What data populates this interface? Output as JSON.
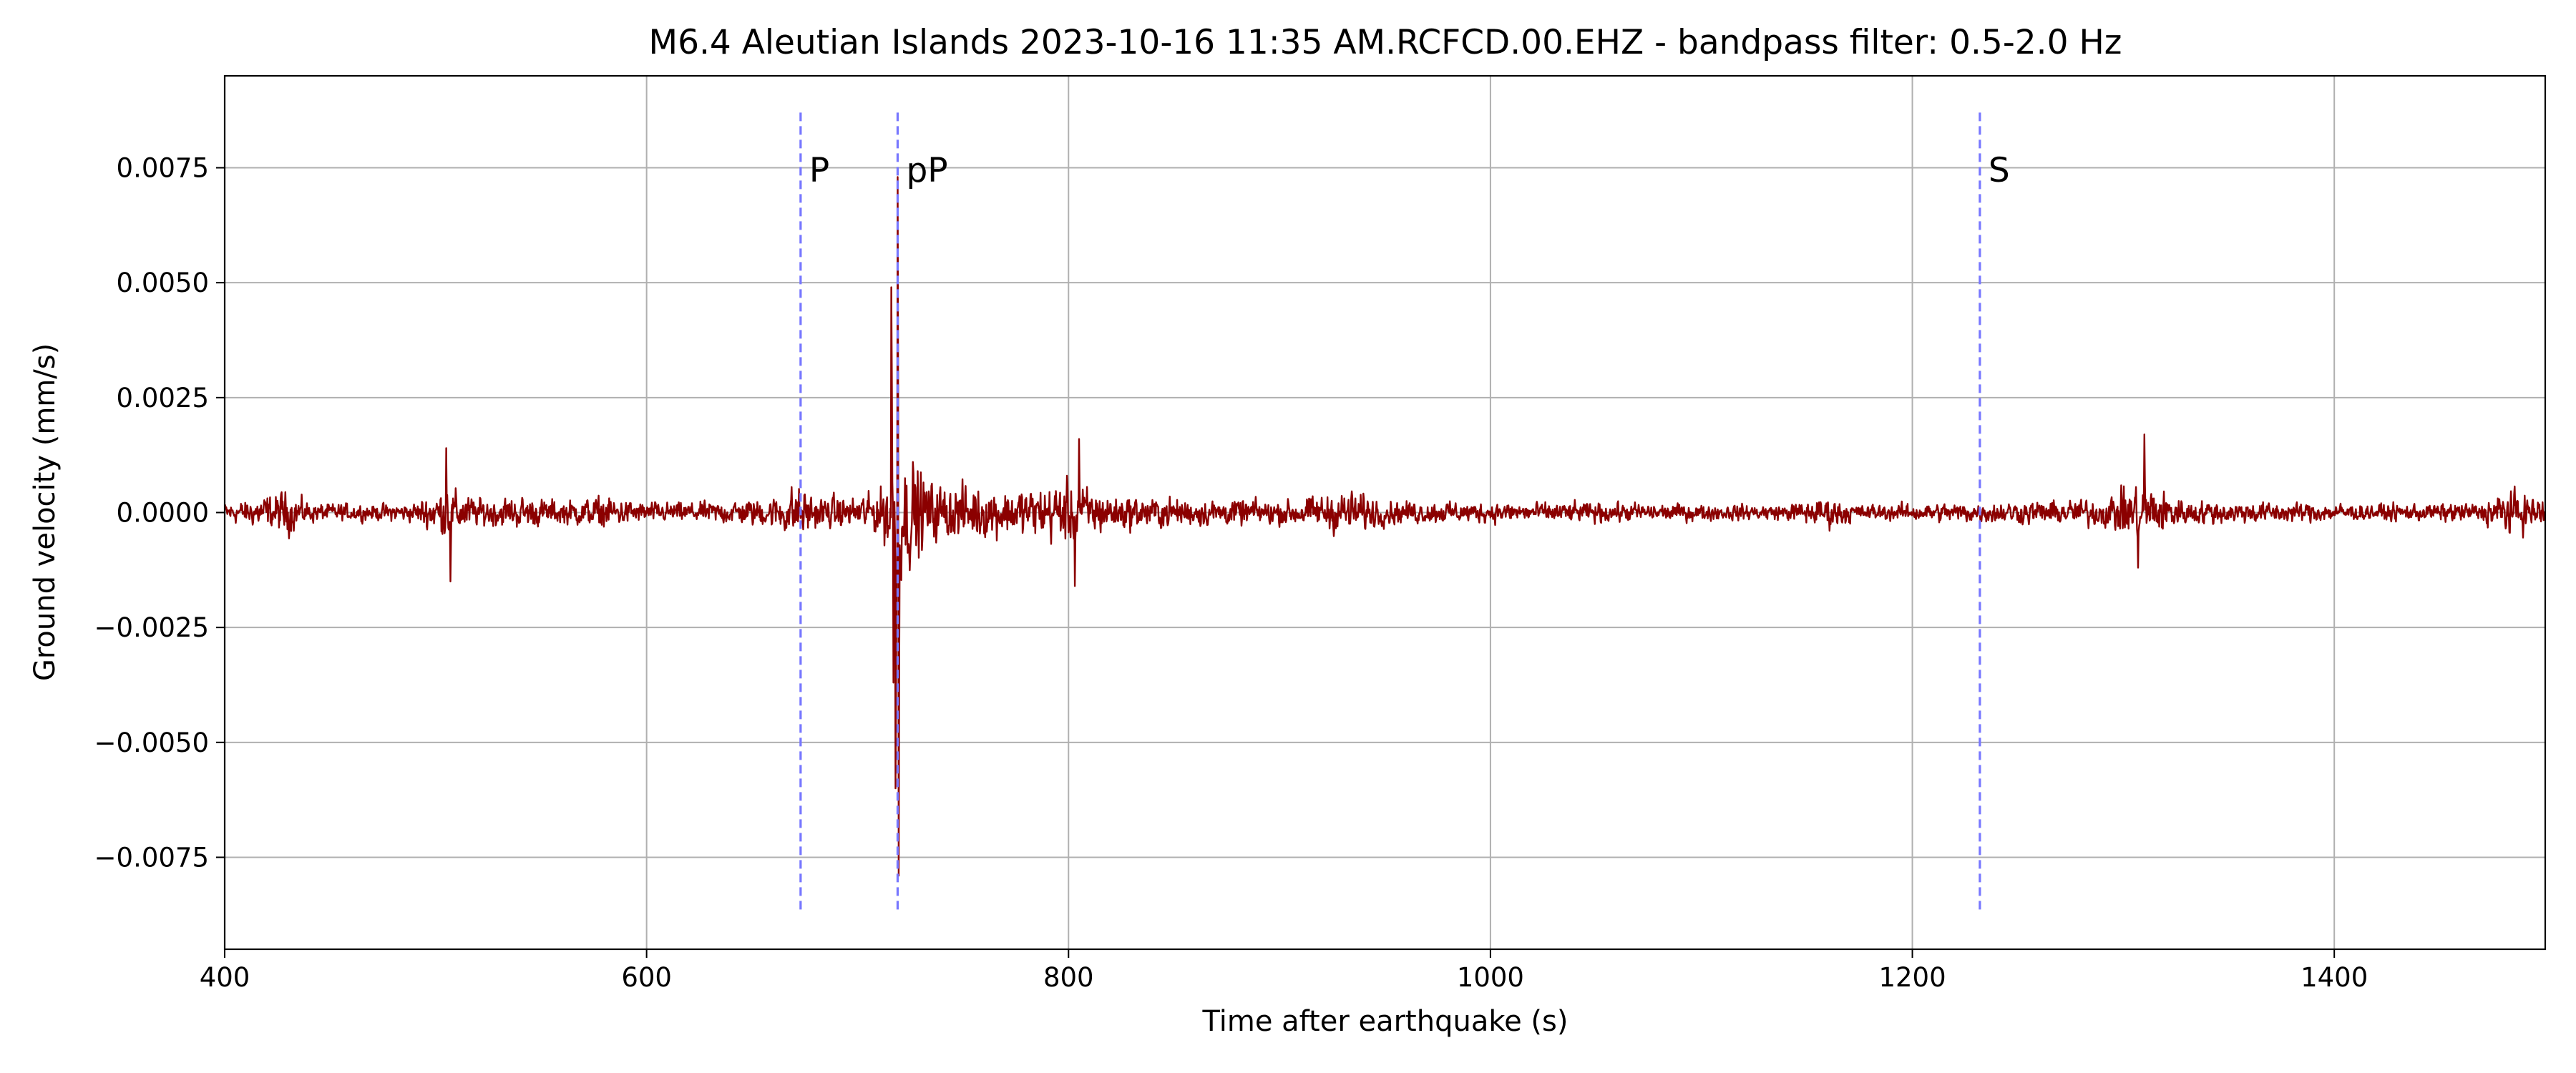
{
  "chart_data": {
    "type": "line",
    "title": "M6.4 Aleutian Islands 2023-10-16 11:35 AM.RCFCD.00.EHZ - bandpass filter: 0.5-2.0 Hz",
    "xlabel": "Time after earthquake (s)",
    "ylabel": "Ground velocity (mm/s)",
    "xlim": [
      400,
      1500
    ],
    "ylim": [
      -0.0095,
      0.0095
    ],
    "xticks": [
      400,
      600,
      800,
      1000,
      1200,
      1400
    ],
    "xtick_labels": [
      "400",
      "600",
      "800",
      "1000",
      "1200",
      "1400"
    ],
    "yticks": [
      -0.0075,
      -0.005,
      -0.0025,
      0.0,
      0.0025,
      0.005,
      0.0075
    ],
    "ytick_labels": [
      "−0.0075",
      "−0.0050",
      "−0.0025",
      "0.0000",
      "0.0025",
      "0.0050",
      "0.0075"
    ],
    "grid": true,
    "series": [
      {
        "color": "#8b0000",
        "sample_interval": 0.25,
        "x_start": 400,
        "x_end": 1500,
        "envelope": [
          [
            400,
            0.0005
          ],
          [
            410,
            0.0006
          ],
          [
            430,
            0.0011
          ],
          [
            440,
            0.0005
          ],
          [
            470,
            0.0004
          ],
          [
            490,
            0.0005
          ],
          [
            505,
            0.0013
          ],
          [
            520,
            0.0007
          ],
          [
            540,
            0.0008
          ],
          [
            560,
            0.0006
          ],
          [
            580,
            0.0008
          ],
          [
            600,
            0.0005
          ],
          [
            620,
            0.0005
          ],
          [
            640,
            0.0006
          ],
          [
            660,
            0.0008
          ],
          [
            672,
            0.0014
          ],
          [
            680,
            0.0008
          ],
          [
            700,
            0.0008
          ],
          [
            710,
            0.0012
          ],
          [
            714,
            0.002
          ],
          [
            716,
            0.0048
          ],
          [
            717,
            0.004
          ],
          [
            718,
            0.005
          ],
          [
            719,
            0.0073
          ],
          [
            720,
            0.003
          ],
          [
            725,
            0.0028
          ],
          [
            735,
            0.0015
          ],
          [
            760,
            0.0013
          ],
          [
            780,
            0.0012
          ],
          [
            800,
            0.0016
          ],
          [
            820,
            0.0009
          ],
          [
            860,
            0.0007
          ],
          [
            900,
            0.0006
          ],
          [
            935,
            0.0011
          ],
          [
            950,
            0.0006
          ],
          [
            1000,
            0.0005
          ],
          [
            1050,
            0.0005
          ],
          [
            1100,
            0.0004
          ],
          [
            1140,
            0.0004
          ],
          [
            1160,
            0.0008
          ],
          [
            1175,
            0.0004
          ],
          [
            1230,
            0.0005
          ],
          [
            1260,
            0.0006
          ],
          [
            1290,
            0.0007
          ],
          [
            1300,
            0.0012
          ],
          [
            1310,
            0.0015
          ],
          [
            1330,
            0.0006
          ],
          [
            1380,
            0.0005
          ],
          [
            1420,
            0.0004
          ],
          [
            1470,
            0.0005
          ],
          [
            1480,
            0.0011
          ],
          [
            1500,
            0.0007
          ]
        ],
        "peaks": [
          [
            719,
            0.0073
          ],
          [
            719.5,
            -0.0079
          ],
          [
            716,
            0.0049
          ],
          [
            717,
            -0.0037
          ],
          [
            718,
            -0.006
          ],
          [
            805,
            0.0016
          ],
          [
            803,
            -0.0016
          ],
          [
            505,
            0.0014
          ],
          [
            507,
            -0.0015
          ],
          [
            1310,
            0.0017
          ],
          [
            1307,
            -0.0012
          ]
        ]
      }
    ],
    "annotations": [
      {
        "label": "P",
        "x": 673,
        "style": "dashed",
        "color": "#7777ff"
      },
      {
        "label": "pP",
        "x": 719,
        "style": "dashed",
        "color": "#7777ff"
      },
      {
        "label": "S",
        "x": 1232,
        "style": "dashed",
        "color": "#7777ff"
      }
    ]
  }
}
